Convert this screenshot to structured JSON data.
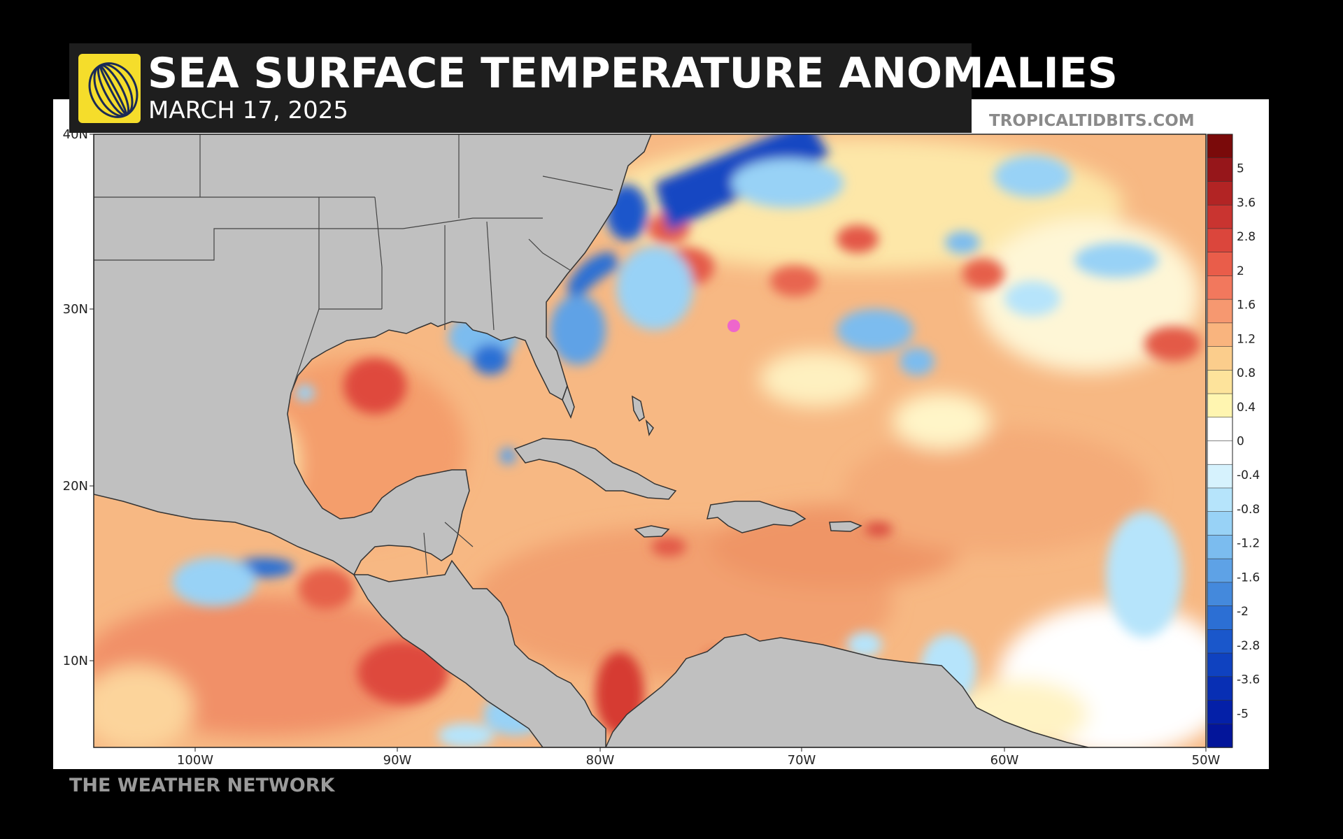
{
  "header": {
    "title": "SEA SURFACE TEMPERATURE ANOMALIES",
    "date": "MARCH 17, 2025",
    "logo_icon": "weather-network-globe-icon"
  },
  "credit": "TROPICALTIDBITS.COM",
  "footer": "THE WEATHER NETWORK",
  "map": {
    "lat_labels": [
      "40N",
      "30N",
      "20N",
      "10N"
    ],
    "lon_labels": [
      "100W",
      "90W",
      "80W",
      "70W",
      "60W",
      "50W"
    ],
    "land_color": "#c0c0c0",
    "storm_marker_color": "#ee66cc"
  },
  "colorbar": {
    "labels": [
      "5",
      "3.6",
      "2.8",
      "2",
      "1.6",
      "1.2",
      "0.8",
      "0.4",
      "0",
      "-0.4",
      "-0.8",
      "-1.2",
      "-1.6",
      "-2",
      "-2.8",
      "-3.6",
      "-5"
    ],
    "colors": [
      "#7a0a0a",
      "#96161a",
      "#b22424",
      "#c93430",
      "#db463c",
      "#e95d4a",
      "#f2785d",
      "#f69870",
      "#f9b47e",
      "#fbcd8c",
      "#fde39b",
      "#fff5b0",
      "#ffffff",
      "#ffffff",
      "#d6f2fd",
      "#b6e4fb",
      "#98d2f6",
      "#7bbcef",
      "#5ea2e6",
      "#4489dc",
      "#2c6fd4",
      "#1a57cb",
      "#0f42c0",
      "#082fb4",
      "#0420a8",
      "#03159a"
    ]
  }
}
